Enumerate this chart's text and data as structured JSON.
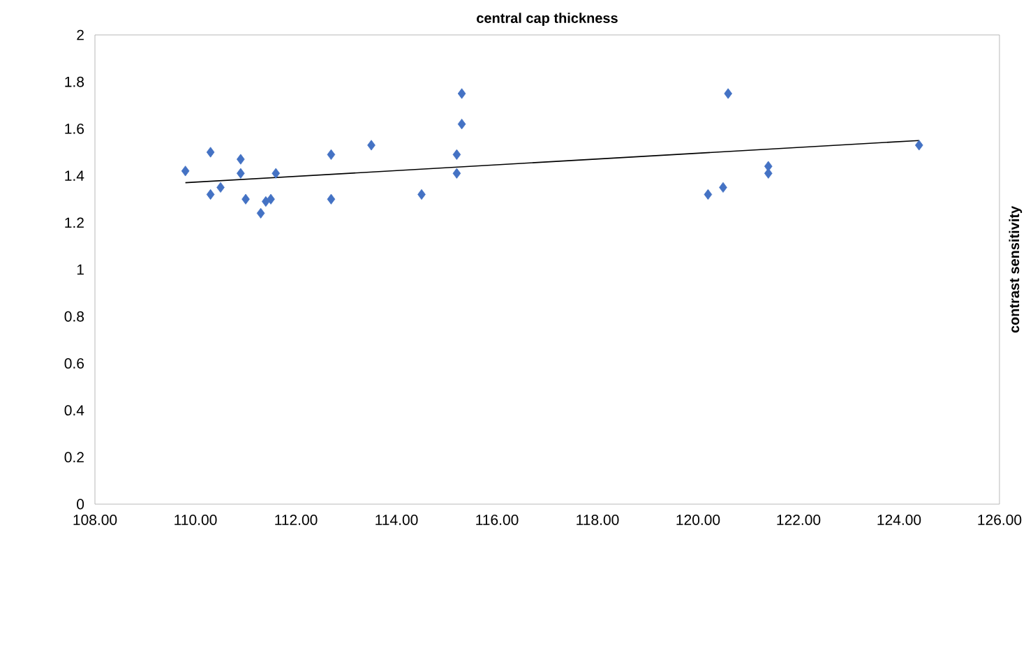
{
  "chart_data": {
    "type": "scatter",
    "title": "central cap thickness",
    "ylabel": "contrast sensitivity",
    "xlim": [
      108,
      126
    ],
    "ylim": [
      0,
      2
    ],
    "xticks": [
      {
        "value": 108,
        "label": "108.00"
      },
      {
        "value": 110,
        "label": "110.00"
      },
      {
        "value": 112,
        "label": "112.00"
      },
      {
        "value": 114,
        "label": "114.00"
      },
      {
        "value": 116,
        "label": "116.00"
      },
      {
        "value": 118,
        "label": "118.00"
      },
      {
        "value": 120,
        "label": "120.00"
      },
      {
        "value": 122,
        "label": "122.00"
      },
      {
        "value": 124,
        "label": "124.00"
      },
      {
        "value": 126,
        "label": "126.00"
      }
    ],
    "yticks": [
      0,
      0.2,
      0.4,
      0.6,
      0.8,
      1,
      1.2,
      1.4,
      1.6,
      1.8,
      2
    ],
    "grid": false,
    "series": [
      {
        "color": "#4472c4",
        "marker": "diamond",
        "x": [
          109.8,
          110.3,
          110.3,
          110.5,
          110.9,
          110.9,
          111.0,
          111.3,
          111.4,
          111.5,
          111.6,
          112.7,
          112.7,
          113.5,
          114.5,
          115.2,
          115.2,
          115.3,
          115.3,
          120.2,
          120.5,
          120.6,
          121.4,
          121.4,
          124.4
        ],
        "values": [
          1.42,
          1.5,
          1.32,
          1.35,
          1.47,
          1.41,
          1.3,
          1.24,
          1.29,
          1.3,
          1.41,
          1.49,
          1.3,
          1.53,
          1.32,
          1.49,
          1.41,
          1.62,
          1.75,
          1.32,
          1.35,
          1.75,
          1.44,
          1.41,
          1.53
        ]
      },
      {
        "type": "line",
        "color": "#000000",
        "marker": "none",
        "line_style": "solid",
        "x": [
          109.8,
          124.4
        ],
        "values": [
          1.37,
          1.55
        ]
      }
    ]
  }
}
